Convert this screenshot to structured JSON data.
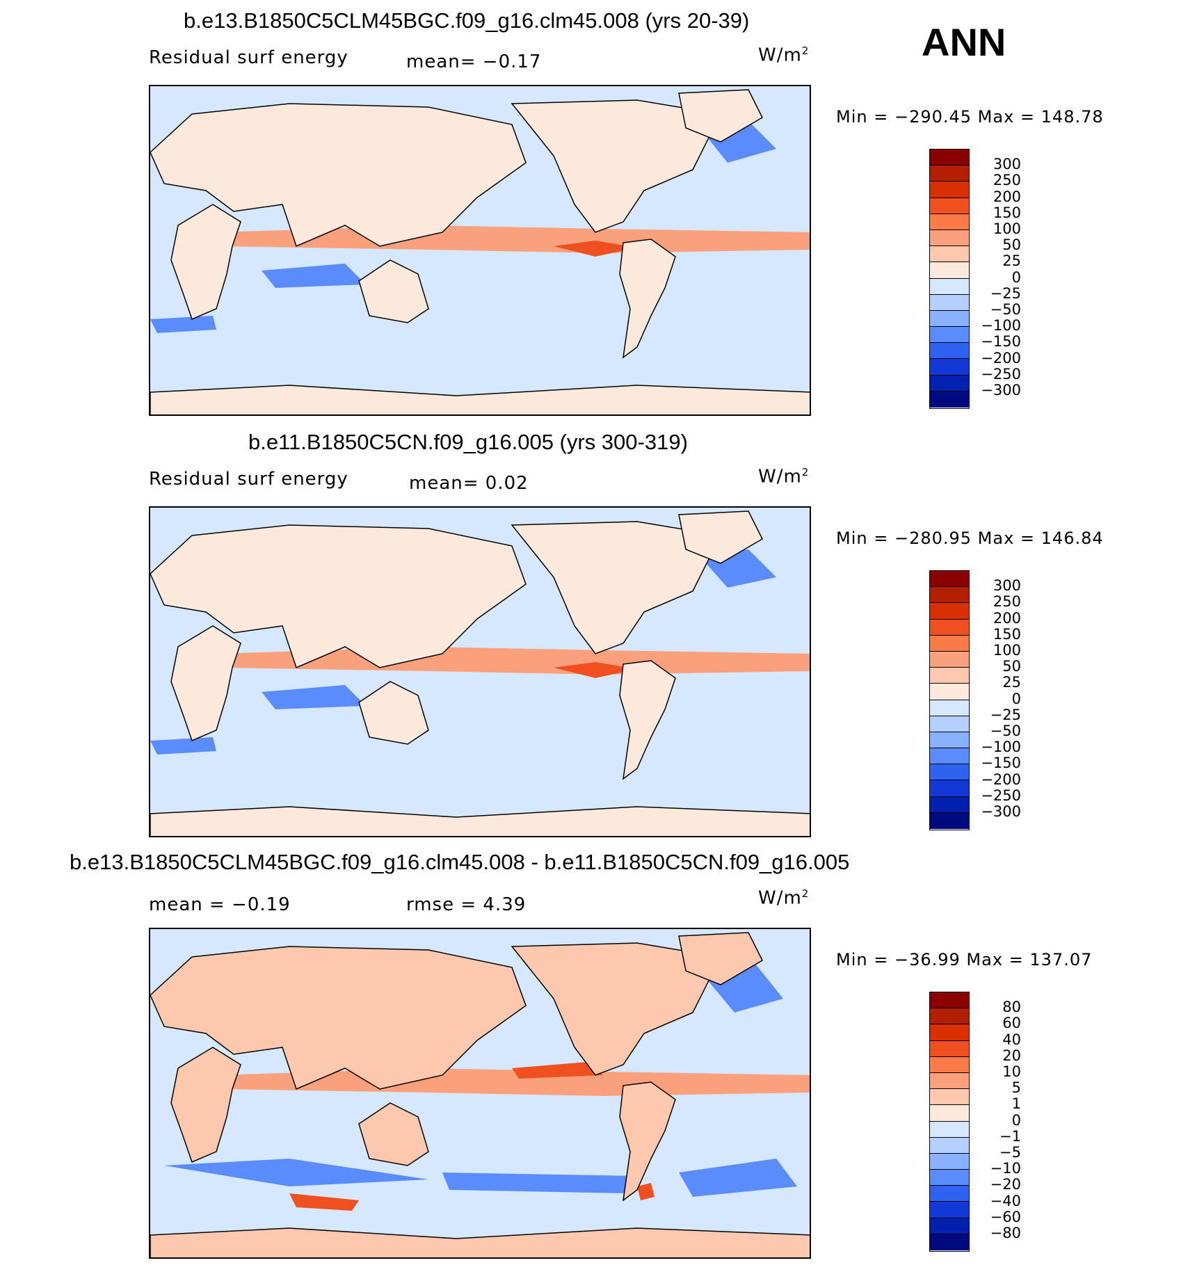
{
  "season": "ANN",
  "units": "W/m",
  "units_exp": "2",
  "panels": [
    {
      "title": "b.e13.B1850C5CLM45BGC.f09_g16.clm45.008 (yrs 20-39)",
      "left_label": "Residual surf energy",
      "center_label": "mean=   −0.17",
      "minmax": "Min  =  −290.45  Max  =  148.78",
      "colorbar_labels": [
        "300",
        "250",
        "200",
        "150",
        "100",
        "50",
        "25",
        "0",
        "−25",
        "−50",
        "−100",
        "−150",
        "−200",
        "−250",
        "−300"
      ]
    },
    {
      "title": "b.e11.B1850C5CN.f09_g16.005 (yrs 300-319)",
      "left_label": "Residual surf energy",
      "center_label": "mean=    0.02",
      "minmax": "Min  =  −280.95  Max  =  146.84",
      "colorbar_labels": [
        "300",
        "250",
        "200",
        "150",
        "100",
        "50",
        "25",
        "0",
        "−25",
        "−50",
        "−100",
        "−150",
        "−200",
        "−250",
        "−300"
      ]
    },
    {
      "title": "b.e13.B1850C5CLM45BGC.f09_g16.clm45.008 - b.e11.B1850C5CN.f09_g16.005",
      "left_label": "mean  =   −0.19",
      "center_label": "rmse  =     4.39",
      "minmax": "Min  =  −36.99  Max  =  137.07",
      "colorbar_labels": [
        "80",
        "60",
        "40",
        "20",
        "10",
        "5",
        "1",
        "0",
        "−1",
        "−5",
        "−10",
        "−20",
        "−40",
        "−60",
        "−80"
      ]
    }
  ],
  "colorbar_colors": [
    "#8b0000",
    "#b22000",
    "#d83000",
    "#f05020",
    "#fa7a48",
    "#fba07c",
    "#fdc8ae",
    "#fde8dc",
    "#d6e8ff",
    "#b4d0ff",
    "#88b2ff",
    "#5a8cff",
    "#2e62f0",
    "#1238d8",
    "#0020b0",
    "#000a80"
  ]
}
